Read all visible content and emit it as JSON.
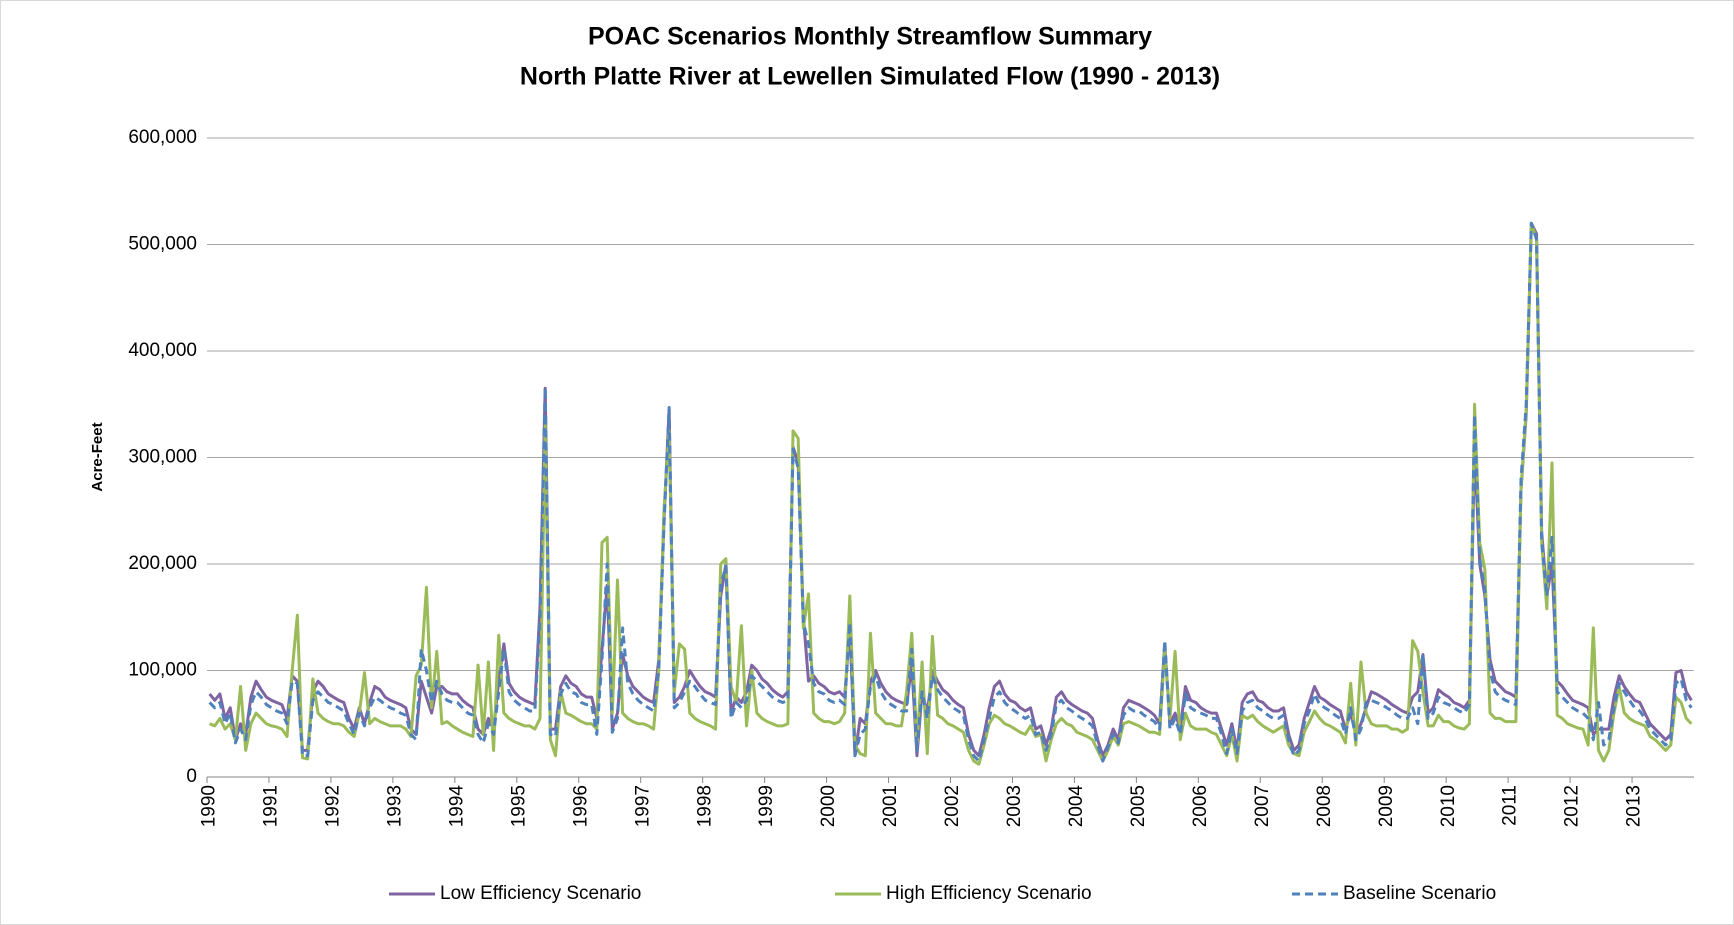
{
  "chart_data": {
    "type": "line",
    "title": "POAC Scenarios Monthly Streamflow Summary",
    "subtitle": "North Platte River at Lewellen Simulated Flow (1990 - 2013)",
    "y_label": "Acre-Feet",
    "ylim": [
      0,
      600000
    ],
    "yticks": [
      0,
      {
        "value": 100000,
        "label": "100,000"
      },
      {
        "value": 200000,
        "label": "200,000"
      },
      {
        "value": 300000,
        "label": "300,000"
      },
      {
        "value": 400000,
        "label": "400,000"
      },
      {
        "value": 500000,
        "label": "500,000"
      },
      {
        "value": 600000,
        "label": "600,000"
      }
    ],
    "grid": true,
    "legend": "bottom",
    "categories": [
      "1990",
      null,
      null,
      null,
      null,
      null,
      null,
      null,
      null,
      null,
      null,
      null,
      "1991",
      null,
      null,
      null,
      null,
      null,
      null,
      null,
      null,
      null,
      null,
      null,
      "1992",
      null,
      null,
      null,
      null,
      null,
      null,
      null,
      null,
      null,
      null,
      null,
      "1993",
      null,
      null,
      null,
      null,
      null,
      null,
      null,
      null,
      null,
      null,
      null,
      "1994",
      null,
      null,
      null,
      null,
      null,
      null,
      null,
      null,
      null,
      null,
      null,
      "1995",
      null,
      null,
      null,
      null,
      null,
      null,
      null,
      null,
      null,
      null,
      null,
      "1996",
      null,
      null,
      null,
      null,
      null,
      null,
      null,
      null,
      null,
      null,
      null,
      "1997",
      null,
      null,
      null,
      null,
      null,
      null,
      null,
      null,
      null,
      null,
      null,
      "1998",
      null,
      null,
      null,
      null,
      null,
      null,
      null,
      null,
      null,
      null,
      null,
      "1999",
      null,
      null,
      null,
      null,
      null,
      null,
      null,
      null,
      null,
      null,
      null,
      "2000",
      null,
      null,
      null,
      null,
      null,
      null,
      null,
      null,
      null,
      null,
      null,
      "2001",
      null,
      null,
      null,
      null,
      null,
      null,
      null,
      null,
      null,
      null,
      null,
      "2002",
      null,
      null,
      null,
      null,
      null,
      null,
      null,
      null,
      null,
      null,
      null,
      "2003",
      null,
      null,
      null,
      null,
      null,
      null,
      null,
      null,
      null,
      null,
      null,
      "2004",
      null,
      null,
      null,
      null,
      null,
      null,
      null,
      null,
      null,
      null,
      null,
      "2005",
      null,
      null,
      null,
      null,
      null,
      null,
      null,
      null,
      null,
      null,
      null,
      "2006",
      null,
      null,
      null,
      null,
      null,
      null,
      null,
      null,
      null,
      null,
      null,
      "2007",
      null,
      null,
      null,
      null,
      null,
      null,
      null,
      null,
      null,
      null,
      null,
      "2008",
      null,
      null,
      null,
      null,
      null,
      null,
      null,
      null,
      null,
      null,
      null,
      "2009",
      null,
      null,
      null,
      null,
      null,
      null,
      null,
      null,
      null,
      null,
      null,
      "2010",
      null,
      null,
      null,
      null,
      null,
      null,
      null,
      null,
      null,
      null,
      null,
      "2011",
      null,
      null,
      null,
      null,
      null,
      null,
      null,
      null,
      null,
      null,
      null,
      "2012",
      null,
      null,
      null,
      null,
      null,
      null,
      null,
      null,
      null,
      null,
      null,
      "2013",
      null,
      null,
      null,
      null,
      null,
      null,
      null,
      null,
      null,
      null,
      null
    ],
    "series": [
      {
        "name": "Low Efficiency Scenario",
        "color": "#8064a2",
        "dash": false,
        "values": [
          78000,
          72000,
          78000,
          55000,
          65000,
          35000,
          50000,
          40000,
          75000,
          90000,
          82000,
          75000,
          72000,
          70000,
          68000,
          55000,
          95000,
          90000,
          25000,
          25000,
          80000,
          90000,
          85000,
          78000,
          75000,
          72000,
          70000,
          55000,
          45000,
          65000,
          50000,
          70000,
          85000,
          82000,
          75000,
          72000,
          70000,
          68000,
          65000,
          45000,
          40000,
          90000,
          75000,
          60000,
          85000,
          85000,
          80000,
          78000,
          78000,
          72000,
          68000,
          65000,
          45000,
          40000,
          55000,
          45000,
          90000,
          125000,
          88000,
          80000,
          75000,
          72000,
          70000,
          68000,
          160000,
          365000,
          45000,
          45000,
          85000,
          95000,
          88000,
          85000,
          78000,
          75000,
          75000,
          55000,
          120000,
          180000,
          45000,
          60000,
          115000,
          95000,
          85000,
          80000,
          75000,
          72000,
          70000,
          110000,
          240000,
          345000,
          70000,
          75000,
          85000,
          100000,
          92000,
          85000,
          80000,
          78000,
          75000,
          170000,
          200000,
          60000,
          75000,
          70000,
          80000,
          105000,
          100000,
          92000,
          88000,
          82000,
          78000,
          75000,
          80000,
          310000,
          295000,
          150000,
          90000,
          95000,
          88000,
          85000,
          80000,
          78000,
          80000,
          75000,
          140000,
          20000,
          55000,
          50000,
          90000,
          100000,
          88000,
          80000,
          75000,
          72000,
          70000,
          68000,
          105000,
          20000,
          80000,
          60000,
          100000,
          90000,
          82000,
          78000,
          72000,
          68000,
          65000,
          40000,
          25000,
          20000,
          40000,
          65000,
          85000,
          90000,
          78000,
          72000,
          70000,
          65000,
          62000,
          65000,
          45000,
          48000,
          30000,
          45000,
          75000,
          80000,
          72000,
          68000,
          65000,
          62000,
          60000,
          55000,
          35000,
          20000,
          30000,
          45000,
          35000,
          65000,
          72000,
          70000,
          68000,
          65000,
          62000,
          58000,
          50000,
          125000,
          50000,
          60000,
          45000,
          85000,
          72000,
          70000,
          65000,
          62000,
          60000,
          60000,
          45000,
          30000,
          50000,
          25000,
          70000,
          78000,
          80000,
          72000,
          70000,
          65000,
          62000,
          62000,
          65000,
          40000,
          25000,
          30000,
          55000,
          70000,
          85000,
          75000,
          72000,
          68000,
          65000,
          62000,
          45000,
          60000,
          40000,
          50000,
          65000,
          80000,
          78000,
          75000,
          72000,
          68000,
          65000,
          62000,
          60000,
          75000,
          80000,
          115000,
          60000,
          65000,
          82000,
          78000,
          75000,
          70000,
          68000,
          65000,
          72000,
          310000,
          200000,
          170000,
          110000,
          90000,
          85000,
          80000,
          78000,
          75000,
          270000,
          340000,
          520000,
          510000,
          230000,
          170000,
          200000,
          90000,
          85000,
          78000,
          72000,
          70000,
          68000,
          65000,
          40000,
          45000,
          45000,
          45000,
          75000,
          95000,
          85000,
          78000,
          72000,
          70000,
          60000,
          50000,
          45000,
          40000,
          35000,
          40000,
          98000,
          100000,
          80000,
          72000
        ]
      },
      {
        "name": "High Efficiency Scenario",
        "color": "#9bbb59",
        "dash": false,
        "values": [
          50000,
          48000,
          55000,
          45000,
          50000,
          35000,
          85000,
          25000,
          50000,
          60000,
          55000,
          50000,
          48000,
          47000,
          45000,
          38000,
          100000,
          152000,
          18000,
          17000,
          92000,
          60000,
          55000,
          52000,
          50000,
          50000,
          48000,
          42000,
          38000,
          60000,
          98000,
          50000,
          55000,
          52000,
          50000,
          48000,
          48000,
          48000,
          45000,
          38000,
          95000,
          105000,
          178000,
          65000,
          118000,
          50000,
          52000,
          48000,
          45000,
          42000,
          40000,
          38000,
          105000,
          40000,
          108000,
          25000,
          133000,
          60000,
          55000,
          52000,
          50000,
          48000,
          48000,
          45000,
          55000,
          330000,
          35000,
          20000,
          80000,
          60000,
          58000,
          55000,
          52000,
          50000,
          50000,
          45000,
          220000,
          225000,
          60000,
          185000,
          60000,
          55000,
          52000,
          50000,
          50000,
          48000,
          45000,
          100000,
          250000,
          325000,
          80000,
          125000,
          120000,
          60000,
          55000,
          52000,
          50000,
          48000,
          45000,
          200000,
          205000,
          85000,
          70000,
          142000,
          48000,
          100000,
          60000,
          55000,
          52000,
          50000,
          48000,
          48000,
          50000,
          325000,
          318000,
          140000,
          172000,
          60000,
          55000,
          52000,
          52000,
          50000,
          52000,
          60000,
          170000,
          30000,
          22000,
          20000,
          135000,
          60000,
          55000,
          50000,
          50000,
          48000,
          48000,
          80000,
          135000,
          30000,
          108000,
          22000,
          132000,
          58000,
          55000,
          50000,
          48000,
          45000,
          42000,
          25000,
          15000,
          12000,
          30000,
          50000,
          58000,
          55000,
          50000,
          48000,
          45000,
          42000,
          40000,
          48000,
          38000,
          40000,
          15000,
          35000,
          50000,
          55000,
          50000,
          48000,
          42000,
          40000,
          38000,
          35000,
          25000,
          15000,
          25000,
          38000,
          30000,
          50000,
          52000,
          50000,
          48000,
          45000,
          42000,
          42000,
          40000,
          120000,
          55000,
          118000,
          35000,
          60000,
          48000,
          45000,
          45000,
          45000,
          42000,
          40000,
          30000,
          20000,
          40000,
          15000,
          58000,
          55000,
          58000,
          52000,
          48000,
          45000,
          42000,
          45000,
          48000,
          30000,
          22000,
          20000,
          42000,
          52000,
          62000,
          55000,
          50000,
          48000,
          45000,
          42000,
          32000,
          88000,
          30000,
          108000,
          60000,
          50000,
          48000,
          48000,
          48000,
          45000,
          45000,
          42000,
          45000,
          128000,
          118000,
          80000,
          48000,
          48000,
          58000,
          52000,
          52000,
          48000,
          46000,
          45000,
          50000,
          350000,
          220000,
          195000,
          60000,
          55000,
          55000,
          52000,
          52000,
          52000,
          270000,
          345000,
          520000,
          505000,
          220000,
          158000,
          295000,
          58000,
          55000,
          50000,
          48000,
          46000,
          45000,
          30000,
          140000,
          25000,
          15000,
          25000,
          60000,
          85000,
          60000,
          55000,
          52000,
          50000,
          48000,
          38000,
          35000,
          30000,
          25000,
          30000,
          75000,
          70000,
          55000,
          50000
        ]
      },
      {
        "name": "Baseline Scenario",
        "color": "#4f81bd",
        "dash": true,
        "values": [
          70000,
          65000,
          70000,
          50000,
          60000,
          32000,
          45000,
          35000,
          68000,
          80000,
          75000,
          68000,
          65000,
          62000,
          60000,
          50000,
          90000,
          88000,
          20000,
          20000,
          72000,
          80000,
          75000,
          70000,
          68000,
          65000,
          62000,
          50000,
          40000,
          60000,
          48000,
          65000,
          75000,
          72000,
          68000,
          65000,
          63000,
          60000,
          58000,
          40000,
          35000,
          120000,
          100000,
          70000,
          90000,
          78000,
          72000,
          70000,
          70000,
          65000,
          60000,
          58000,
          40000,
          32000,
          50000,
          40000,
          80000,
          120000,
          80000,
          72000,
          68000,
          65000,
          62000,
          62000,
          150000,
          366000,
          40000,
          38000,
          78000,
          88000,
          80000,
          78000,
          70000,
          68000,
          68000,
          40000,
          110000,
          200000,
          42000,
          55000,
          140000,
          88000,
          78000,
          72000,
          68000,
          65000,
          62000,
          100000,
          235000,
          347000,
          65000,
          70000,
          80000,
          90000,
          85000,
          78000,
          72000,
          70000,
          68000,
          180000,
          198000,
          55000,
          70000,
          65000,
          72000,
          95000,
          90000,
          85000,
          80000,
          75000,
          72000,
          70000,
          72000,
          308000,
          290000,
          145000,
          125000,
          88000,
          80000,
          78000,
          72000,
          70000,
          72000,
          68000,
          145000,
          20000,
          40000,
          45000,
          85000,
          95000,
          80000,
          72000,
          68000,
          65000,
          62000,
          62000,
          120000,
          25000,
          80000,
          55000,
          95000,
          82000,
          75000,
          70000,
          65000,
          62000,
          58000,
          35000,
          20000,
          15000,
          35000,
          55000,
          75000,
          80000,
          70000,
          65000,
          62000,
          58000,
          55000,
          58000,
          40000,
          42000,
          25000,
          40000,
          68000,
          72000,
          65000,
          62000,
          58000,
          55000,
          52000,
          48000,
          30000,
          15000,
          28000,
          40000,
          32000,
          58000,
          65000,
          62000,
          62000,
          58000,
          55000,
          52000,
          45000,
          128000,
          45000,
          55000,
          40000,
          78000,
          65000,
          62000,
          60000,
          58000,
          55000,
          55000,
          40000,
          22000,
          45000,
          22000,
          62000,
          70000,
          72000,
          65000,
          62000,
          58000,
          55000,
          55000,
          58000,
          35000,
          20000,
          25000,
          50000,
          62000,
          78000,
          68000,
          65000,
          62000,
          58000,
          55000,
          40000,
          65000,
          35000,
          45000,
          70000,
          72000,
          70000,
          68000,
          65000,
          62000,
          58000,
          55000,
          55000,
          65000,
          50000,
          115000,
          55000,
          60000,
          75000,
          70000,
          68000,
          65000,
          62000,
          60000,
          68000,
          340000,
          205000,
          175000,
          100000,
          80000,
          75000,
          72000,
          70000,
          68000,
          280000,
          350000,
          520000,
          505000,
          220000,
          170000,
          225000,
          80000,
          75000,
          70000,
          65000,
          62000,
          60000,
          55000,
          35000,
          70000,
          30000,
          35000,
          65000,
          88000,
          80000,
          72000,
          65000,
          62000,
          55000,
          45000,
          40000,
          35000,
          30000,
          35000,
          88000,
          92000,
          72000,
          65000
        ]
      }
    ]
  }
}
